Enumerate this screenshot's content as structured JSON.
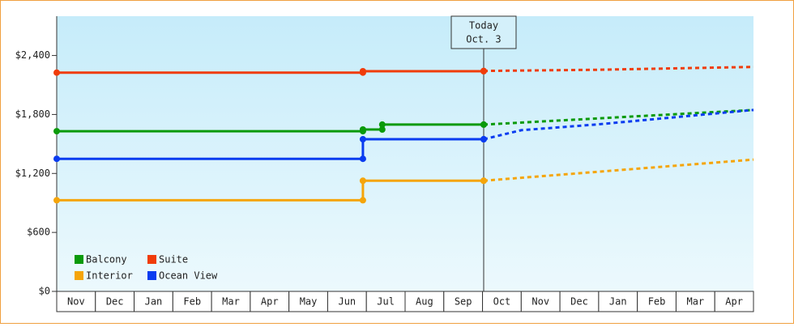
{
  "chart_data": {
    "type": "step-line",
    "categories": [
      "Nov",
      "Dec",
      "Jan",
      "Feb",
      "Mar",
      "Apr",
      "May",
      "Jun",
      "Jul",
      "Aug",
      "Sep",
      "Oct",
      "Nov",
      "Dec",
      "Jan",
      "Feb",
      "Mar",
      "Apr"
    ],
    "xlim": [
      0,
      18
    ],
    "ylim": [
      0,
      2800
    ],
    "yticks": [
      {
        "value": 0,
        "label": "$0"
      },
      {
        "value": 600,
        "label": "$600"
      },
      {
        "value": 1200,
        "label": "$1,200"
      },
      {
        "value": 1800,
        "label": "$1,800"
      },
      {
        "value": 2400,
        "label": "$2,400"
      }
    ],
    "annotation": {
      "lines": [
        "Today",
        "Oct. 3"
      ],
      "x": 11.03
    },
    "legend": "lower left",
    "series": [
      {
        "name": "Balcony",
        "color": "#0a9a0a",
        "x": [
          0,
          7.91,
          8.41,
          11.03
        ],
        "values": [
          1630,
          1647,
          1697,
          1697
        ],
        "forecast_x": [
          11.03,
          18
        ],
        "forecast_values": [
          1697,
          1846
        ]
      },
      {
        "name": "Suite",
        "color": "#f03c0a",
        "x": [
          0,
          7.91,
          11.03
        ],
        "values": [
          2226,
          2240,
          2243
        ],
        "forecast_x": [
          11.03,
          14,
          18
        ],
        "forecast_values": [
          2243,
          2255,
          2284
        ]
      },
      {
        "name": "Interior",
        "color": "#f5a50a",
        "x": [
          0,
          7.91,
          11.03
        ],
        "values": [
          927,
          1126,
          1126
        ],
        "forecast_x": [
          11.03,
          18
        ],
        "forecast_values": [
          1126,
          1341
        ]
      },
      {
        "name": "Ocean View",
        "color": "#0a3cf0",
        "x": [
          0,
          7.91,
          11.03
        ],
        "values": [
          1349,
          1548,
          1548
        ],
        "forecast_x": [
          11.03,
          12,
          14,
          18
        ],
        "forecast_values": [
          1548,
          1640,
          1700,
          1846
        ]
      }
    ]
  }
}
